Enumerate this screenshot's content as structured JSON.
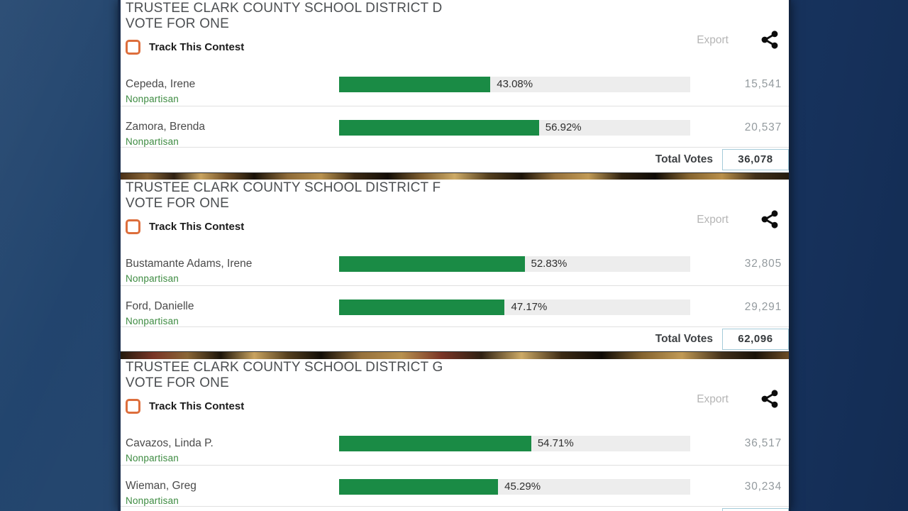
{
  "ui": {
    "export_label": "Export",
    "track_contest_label": "Track This Contest",
    "total_votes_label": "Total Votes"
  },
  "colors": {
    "bar_fill": "#1a8b45",
    "bar_track": "#ededed",
    "checkbox_accent": "#dd6e3c",
    "party_green": "#3d8b41",
    "total_box_border": "#a5cbd9",
    "background_navy": "#1d3e6a"
  },
  "contests": [
    {
      "title_line1": "TRUSTEE CLARK COUNTY SCHOOL DISTRICT D",
      "title_line2": "VOTE FOR ONE",
      "total_votes": "36,078",
      "candidates": [
        {
          "name": "Cepeda, Irene",
          "party": "Nonpartisan",
          "percent": 43.08,
          "percent_label": "43.08%",
          "votes": "15,541"
        },
        {
          "name": "Zamora, Brenda",
          "party": "Nonpartisan",
          "percent": 56.92,
          "percent_label": "56.92%",
          "votes": "20,537"
        }
      ]
    },
    {
      "title_line1": "TRUSTEE CLARK COUNTY SCHOOL DISTRICT F",
      "title_line2": "VOTE FOR ONE",
      "total_votes": "62,096",
      "candidates": [
        {
          "name": "Bustamante Adams, Irene",
          "party": "Nonpartisan",
          "percent": 52.83,
          "percent_label": "52.83%",
          "votes": "32,805"
        },
        {
          "name": "Ford, Danielle",
          "party": "Nonpartisan",
          "percent": 47.17,
          "percent_label": "47.17%",
          "votes": "29,291"
        }
      ]
    },
    {
      "title_line1": "TRUSTEE CLARK COUNTY SCHOOL DISTRICT G",
      "title_line2": "VOTE FOR ONE",
      "total_votes": "",
      "candidates": [
        {
          "name": "Cavazos, Linda P.",
          "party": "Nonpartisan",
          "percent": 54.71,
          "percent_label": "54.71%",
          "votes": "36,517"
        },
        {
          "name": "Wieman, Greg",
          "party": "Nonpartisan",
          "percent": 45.29,
          "percent_label": "45.29%",
          "votes": "30,234"
        }
      ]
    }
  ]
}
